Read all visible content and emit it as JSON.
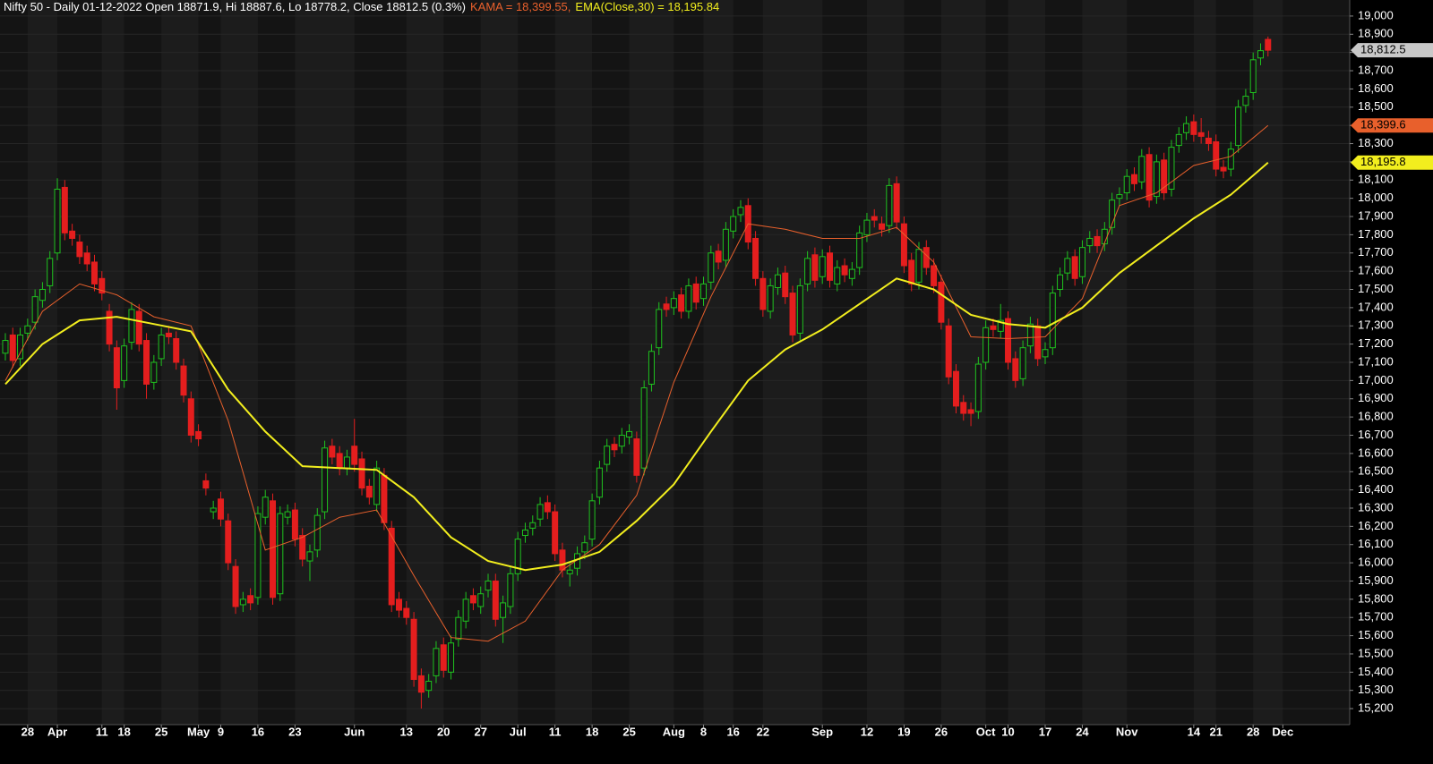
{
  "chart_data": {
    "type": "candlestick",
    "title": "Nifty 50 - Daily 01-12-2022 Open 18871.9, Hi 18887.6, Lo 18778.2, Close 18812.5 (0.3%)",
    "candles": {
      "up_color": "#1fc21f",
      "down_color": "#e41e1e",
      "last_label": "18,812.5",
      "open": [
        17150,
        17250,
        17120,
        17260,
        17320,
        17440,
        17520,
        17700,
        18060,
        17820,
        17760,
        17700,
        17650,
        17560,
        17380,
        17180,
        17000,
        17210,
        17380,
        17220,
        16990,
        17120,
        17260,
        17230,
        17080,
        16900,
        16720,
        16450,
        16280,
        16350,
        16230,
        15980,
        15770,
        15820,
        15810,
        16250,
        16340,
        15830,
        16250,
        16290,
        16150,
        16010,
        16070,
        16280,
        16640,
        16600,
        16520,
        16640,
        16570,
        16420,
        16320,
        16480,
        16190,
        15800,
        15750,
        15690,
        15380,
        15300,
        15380,
        15550,
        15400,
        15580,
        15680,
        15820,
        15760,
        15850,
        15900,
        15700,
        15760,
        15940,
        16150,
        16190,
        16240,
        16330,
        16280,
        16070,
        15940,
        15970,
        16060,
        16130,
        16360,
        16540,
        16650,
        16640,
        16690,
        16680,
        16520,
        16980,
        17180,
        17420,
        17400,
        17470,
        17380,
        17530,
        17450,
        17540,
        17710,
        17660,
        17820,
        17910,
        17960,
        17780,
        17560,
        17380,
        17510,
        17590,
        17480,
        17260,
        17530,
        17690,
        17570,
        17700,
        17530,
        17630,
        17560,
        17620,
        17800,
        17900,
        17860,
        17850,
        18080,
        17860,
        17660,
        17540,
        17730,
        17630,
        17540,
        17300,
        17050,
        16880,
        16840,
        16830,
        17100,
        17300,
        17270,
        17340,
        17120,
        17010,
        17190,
        17300,
        17130,
        17180,
        17500,
        17590,
        17680,
        17570,
        17740,
        17790,
        17750,
        17840,
        18000,
        18030,
        18130,
        18090,
        18240,
        18010,
        18210,
        18050,
        18290,
        18360,
        18420,
        18360,
        18330,
        18310,
        18170,
        18160,
        18290,
        18510,
        18580,
        18770,
        18871.9
      ],
      "high": [
        17260,
        17290,
        17290,
        17340,
        17500,
        17540,
        17710,
        18110,
        18100,
        17860,
        17800,
        17740,
        17690,
        17600,
        17420,
        17220,
        17230,
        17430,
        17420,
        17260,
        17140,
        17290,
        17300,
        17270,
        17120,
        16940,
        16760,
        16490,
        16340,
        16390,
        16270,
        16020,
        15840,
        15860,
        16310,
        16400,
        16380,
        16310,
        16320,
        16330,
        16190,
        16100,
        16300,
        16670,
        16680,
        16640,
        16620,
        16790,
        16610,
        16460,
        16560,
        16520,
        16230,
        15840,
        15790,
        15730,
        15420,
        15390,
        15570,
        15590,
        15600,
        15740,
        15840,
        15860,
        15870,
        15940,
        15940,
        15820,
        15980,
        16170,
        16220,
        16260,
        16360,
        16370,
        16320,
        16110,
        16000,
        16090,
        16150,
        16380,
        16560,
        16680,
        16690,
        16740,
        16760,
        16720,
        17000,
        17200,
        17430,
        17460,
        17490,
        17510,
        17560,
        17570,
        17570,
        17740,
        17750,
        17870,
        17940,
        17990,
        18000,
        17820,
        17600,
        17560,
        17620,
        17630,
        17520,
        17560,
        17710,
        17730,
        17720,
        17740,
        17660,
        17670,
        17650,
        17850,
        17920,
        17940,
        17900,
        18110,
        18120,
        17900,
        17700,
        17760,
        17770,
        17670,
        17580,
        17340,
        17090,
        16920,
        16880,
        17130,
        17330,
        17340,
        17420,
        17380,
        17160,
        17220,
        17350,
        17340,
        17210,
        17520,
        17620,
        17710,
        17720,
        17770,
        17820,
        17830,
        17870,
        18030,
        18060,
        18160,
        18170,
        18270,
        18280,
        18240,
        18250,
        18320,
        18390,
        18450,
        18460,
        18440,
        18370,
        18350,
        18210,
        18310,
        18540,
        18600,
        18800,
        18850,
        18887.6
      ],
      "low": [
        17110,
        17070,
        17080,
        17220,
        17280,
        17400,
        17480,
        17660,
        17770,
        17740,
        17640,
        17600,
        17490,
        17440,
        17160,
        16840,
        16960,
        17170,
        17160,
        16900,
        16950,
        17080,
        17200,
        17060,
        16880,
        16660,
        16640,
        16370,
        16240,
        16200,
        15960,
        15720,
        15730,
        15740,
        15770,
        16210,
        15770,
        15790,
        16210,
        16090,
        15980,
        15900,
        16030,
        16240,
        16540,
        16480,
        16480,
        16500,
        16370,
        16320,
        16280,
        16180,
        15730,
        15700,
        15660,
        15320,
        15200,
        15260,
        15340,
        15370,
        15360,
        15540,
        15640,
        15740,
        15720,
        15810,
        15650,
        15560,
        15720,
        15900,
        16110,
        16150,
        16200,
        16240,
        16010,
        15920,
        15870,
        15930,
        16020,
        16090,
        16320,
        16500,
        16580,
        16600,
        16650,
        16440,
        16480,
        16940,
        17140,
        17350,
        17360,
        17340,
        17340,
        17390,
        17410,
        17500,
        17610,
        17620,
        17780,
        17870,
        17720,
        17520,
        17350,
        17340,
        17470,
        17420,
        17210,
        17220,
        17490,
        17510,
        17530,
        17510,
        17490,
        17540,
        17520,
        17580,
        17760,
        17840,
        17790,
        17810,
        17830,
        17590,
        17490,
        17500,
        17580,
        17480,
        17280,
        16980,
        16820,
        16780,
        16750,
        16790,
        17060,
        17240,
        17230,
        17060,
        16960,
        16970,
        17150,
        17080,
        17090,
        17140,
        17460,
        17550,
        17520,
        17530,
        17700,
        17700,
        17710,
        17800,
        17960,
        17990,
        18040,
        18050,
        17950,
        17970,
        17990,
        18010,
        18250,
        18320,
        18310,
        18300,
        18260,
        18120,
        18110,
        18120,
        18250,
        18470,
        18540,
        18730,
        18778.2
      ],
      "close": [
        17220,
        17110,
        17250,
        17300,
        17460,
        17500,
        17670,
        18050,
        17810,
        17780,
        17680,
        17640,
        17530,
        17480,
        17200,
        16960,
        17190,
        17390,
        17200,
        16980,
        17100,
        17250,
        17240,
        17100,
        16920,
        16700,
        16680,
        16410,
        16300,
        16240,
        16000,
        15760,
        15800,
        15780,
        16270,
        16360,
        15810,
        16270,
        16280,
        16130,
        16020,
        16060,
        16260,
        16630,
        16580,
        16520,
        16580,
        16540,
        16410,
        16360,
        16520,
        16220,
        15770,
        15740,
        15700,
        15360,
        15290,
        15350,
        15530,
        15410,
        15560,
        15700,
        15800,
        15780,
        15830,
        15900,
        15690,
        15780,
        15940,
        16130,
        16180,
        16220,
        16320,
        16280,
        16050,
        15960,
        15960,
        16050,
        16110,
        16340,
        16520,
        16640,
        16620,
        16700,
        16720,
        16480,
        16960,
        17160,
        17390,
        17390,
        17450,
        17380,
        17520,
        17430,
        17530,
        17700,
        17650,
        17830,
        17900,
        17950,
        17760,
        17560,
        17390,
        17520,
        17580,
        17460,
        17250,
        17520,
        17670,
        17550,
        17680,
        17550,
        17620,
        17580,
        17610,
        17810,
        17880,
        17880,
        17830,
        18070,
        17870,
        17630,
        17530,
        17720,
        17620,
        17520,
        17320,
        17020,
        16860,
        16820,
        16820,
        17090,
        17290,
        17280,
        17330,
        17100,
        17000,
        17180,
        17310,
        17120,
        17170,
        17480,
        17580,
        17670,
        17560,
        17730,
        17780,
        17740,
        17830,
        17990,
        18020,
        18120,
        18080,
        18230,
        17990,
        18200,
        18030,
        18280,
        18350,
        18410,
        18350,
        18340,
        18300,
        18160,
        18150,
        18270,
        18500,
        18560,
        18760,
        18810,
        18812.5
      ]
    },
    "series": [
      {
        "name": "KAMA = 18,399.55,",
        "color": "#e8602c",
        "last_label": "18,399.6",
        "x": [
          0,
          5,
          10,
          15,
          20,
          25,
          30,
          35,
          40,
          45,
          50,
          55,
          60,
          65,
          70,
          75,
          80,
          85,
          90,
          95,
          100,
          105,
          110,
          115,
          120,
          125,
          130,
          135,
          140,
          145,
          150,
          155,
          160,
          165,
          170
        ],
        "values": [
          17000,
          17380,
          17530,
          17470,
          17350,
          17300,
          16780,
          16070,
          16140,
          16250,
          16290,
          15930,
          15590,
          15570,
          15680,
          15960,
          16100,
          16370,
          16990,
          17460,
          17860,
          17830,
          17780,
          17780,
          17840,
          17650,
          17240,
          17230,
          17240,
          17450,
          17960,
          18030,
          18180,
          18230,
          18399.55
        ]
      },
      {
        "name": "EMA(Close,30) = 18,195.84",
        "color": "#f2ee1e",
        "last_label": "18,195.8",
        "x": [
          0,
          5,
          10,
          15,
          20,
          25,
          30,
          35,
          40,
          45,
          50,
          55,
          60,
          65,
          70,
          75,
          80,
          85,
          90,
          95,
          100,
          105,
          110,
          115,
          120,
          125,
          130,
          135,
          140,
          145,
          150,
          155,
          160,
          165,
          170
        ],
        "values": [
          16980,
          17200,
          17330,
          17350,
          17310,
          17270,
          16950,
          16720,
          16530,
          16520,
          16510,
          16360,
          16140,
          16010,
          15960,
          15990,
          16060,
          16230,
          16430,
          16720,
          17000,
          17170,
          17280,
          17420,
          17560,
          17500,
          17360,
          17310,
          17290,
          17400,
          17590,
          17740,
          17890,
          18020,
          18195.84
        ]
      }
    ],
    "xlim": [
      -0.72,
      181
    ],
    "xticks": [
      {
        "value": 3,
        "label": "28"
      },
      {
        "value": 7,
        "label": "Apr"
      },
      {
        "value": 13,
        "label": "11"
      },
      {
        "value": 16,
        "label": "18"
      },
      {
        "value": 21,
        "label": "25"
      },
      {
        "value": 26,
        "label": "May"
      },
      {
        "value": 29,
        "label": "9"
      },
      {
        "value": 34,
        "label": "16"
      },
      {
        "value": 39,
        "label": "23"
      },
      {
        "value": 47,
        "label": "Jun"
      },
      {
        "value": 54,
        "label": "13"
      },
      {
        "value": 59,
        "label": "20"
      },
      {
        "value": 64,
        "label": "27"
      },
      {
        "value": 69,
        "label": "Jul"
      },
      {
        "value": 74,
        "label": "11"
      },
      {
        "value": 79,
        "label": "18"
      },
      {
        "value": 84,
        "label": "25"
      },
      {
        "value": 90,
        "label": "Aug"
      },
      {
        "value": 94,
        "label": "8"
      },
      {
        "value": 98,
        "label": "16"
      },
      {
        "value": 102,
        "label": "22"
      },
      {
        "value": 110,
        "label": "Sep"
      },
      {
        "value": 116,
        "label": "12"
      },
      {
        "value": 121,
        "label": "19"
      },
      {
        "value": 126,
        "label": "26"
      },
      {
        "value": 132,
        "label": "Oct"
      },
      {
        "value": 135,
        "label": "10"
      },
      {
        "value": 140,
        "label": "17"
      },
      {
        "value": 145,
        "label": "24"
      },
      {
        "value": 151,
        "label": "Nov"
      },
      {
        "value": 160,
        "label": "14"
      },
      {
        "value": 163,
        "label": "21"
      },
      {
        "value": 168,
        "label": "28"
      },
      {
        "value": 172,
        "label": "Dec"
      }
    ],
    "ylim": [
      15112,
      19088
    ],
    "yticks": [
      {
        "value": 15200,
        "label": "15,200"
      },
      {
        "value": 15300,
        "label": "15,300"
      },
      {
        "value": 15400,
        "label": "15,400"
      },
      {
        "value": 15500,
        "label": "15,500"
      },
      {
        "value": 15600,
        "label": "15,600"
      },
      {
        "value": 15700,
        "label": "15,700"
      },
      {
        "value": 15800,
        "label": "15,800"
      },
      {
        "value": 15900,
        "label": "15,900"
      },
      {
        "value": 16000,
        "label": "16,000"
      },
      {
        "value": 16100,
        "label": "16,100"
      },
      {
        "value": 16200,
        "label": "16,200"
      },
      {
        "value": 16300,
        "label": "16,300"
      },
      {
        "value": 16400,
        "label": "16,400"
      },
      {
        "value": 16500,
        "label": "16,500"
      },
      {
        "value": 16600,
        "label": "16,600"
      },
      {
        "value": 16700,
        "label": "16,700"
      },
      {
        "value": 16800,
        "label": "16,800"
      },
      {
        "value": 16900,
        "label": "16,900"
      },
      {
        "value": 17000,
        "label": "17,000"
      },
      {
        "value": 17100,
        "label": "17,100"
      },
      {
        "value": 17200,
        "label": "17,200"
      },
      {
        "value": 17300,
        "label": "17,300"
      },
      {
        "value": 17400,
        "label": "17,400"
      },
      {
        "value": 17500,
        "label": "17,500"
      },
      {
        "value": 17600,
        "label": "17,600"
      },
      {
        "value": 17700,
        "label": "17,700"
      },
      {
        "value": 17800,
        "label": "17,800"
      },
      {
        "value": 17900,
        "label": "17,900"
      },
      {
        "value": 18000,
        "label": "18,000"
      },
      {
        "value": 18100,
        "label": "18,100"
      },
      {
        "value": 18200,
        "label": "18,200"
      },
      {
        "value": 18300,
        "label": "18,300"
      },
      {
        "value": 18400,
        "label": "18,400"
      },
      {
        "value": 18500,
        "label": "18,500"
      },
      {
        "value": 18600,
        "label": "18,600"
      },
      {
        "value": 18700,
        "label": "18,700"
      },
      {
        "value": 18800,
        "label": "18,800"
      },
      {
        "value": 18900,
        "label": "18,900"
      },
      {
        "value": 19000,
        "label": "19,000"
      }
    ],
    "grid": true,
    "background": "#141414",
    "band_color": "#1c1c1c"
  }
}
